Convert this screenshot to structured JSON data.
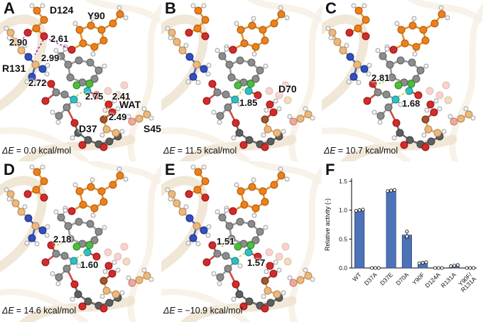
{
  "figure": {
    "background": "#ffffff"
  },
  "panels": [
    {
      "letter": "A",
      "residue_labels": [
        "D124",
        "Y90",
        "R131",
        "D37",
        "WAT",
        "S45"
      ],
      "distance_labels": [
        "2.90",
        "2.61",
        "2.99",
        "2.72",
        "2.75",
        "2.41",
        "2.49"
      ],
      "delta_e_label": "ΔE",
      "delta_e_value": "= 0.0 kcal/mol"
    },
    {
      "letter": "B",
      "residue_labels": [
        "D70"
      ],
      "distance_labels": [
        "1.85"
      ],
      "delta_e_label": "ΔE",
      "delta_e_value": "= 11.5 kcal/mol"
    },
    {
      "letter": "C",
      "residue_labels": [],
      "distance_labels": [
        "2.81",
        "1.68"
      ],
      "delta_e_label": "ΔE",
      "delta_e_value": "= 10.7 kcal/mol"
    },
    {
      "letter": "D",
      "residue_labels": [],
      "distance_labels": [
        "2.18",
        "1.60"
      ],
      "delta_e_label": "ΔE",
      "delta_e_value": "= 14.6 kcal/mol"
    },
    {
      "letter": "E",
      "residue_labels": [],
      "distance_labels": [
        "1.51",
        "1.57"
      ],
      "delta_e_label": "ΔE",
      "delta_e_value": "= −10.9 kcal/mol"
    },
    {
      "letter": "F"
    }
  ],
  "chart_data": {
    "type": "bar",
    "title": "",
    "xlabel": "",
    "ylabel": "Relative activity (-)",
    "categories": [
      "WT",
      "D37A",
      "D37E",
      "D70A",
      "Y90F",
      "D124A",
      "R131A",
      "Y90F/R131A"
    ],
    "values": [
      1.0,
      0.0,
      1.34,
      0.57,
      0.09,
      0.0,
      0.04,
      0.0
    ],
    "points": [
      [
        0.99,
        1.0,
        1.01
      ],
      [
        0,
        0,
        0
      ],
      [
        1.33,
        1.34,
        1.35
      ],
      [
        0.53,
        0.55,
        0.63
      ],
      [
        0.08,
        0.09,
        0.1
      ],
      [
        0,
        0,
        0
      ],
      [
        0.03,
        0.04,
        0.05
      ],
      [
        0,
        0,
        0
      ]
    ],
    "yticks": [
      0.0,
      0.5,
      1.0,
      1.5
    ],
    "ylim": [
      0,
      1.5
    ],
    "bar_color": "#4C72B8",
    "grid": false,
    "legend_position": "none"
  },
  "colors": {
    "carbon_orange": "#EE7F1A",
    "carbon_gray": "#8C8C8C",
    "carbon_tan": "#EAB97F",
    "oxygen_red": "#D42A2A",
    "nitrogen_blue": "#3050BE",
    "hydrogen_white": "#F3F3F3",
    "highlight_green": "#4DBE3C",
    "highlight_cyan": "#2BC1C4",
    "hbond_magenta": "#B0289B",
    "hbond_yellow": "#C3C43A",
    "ribbon_beige": "#EEE1CD"
  }
}
